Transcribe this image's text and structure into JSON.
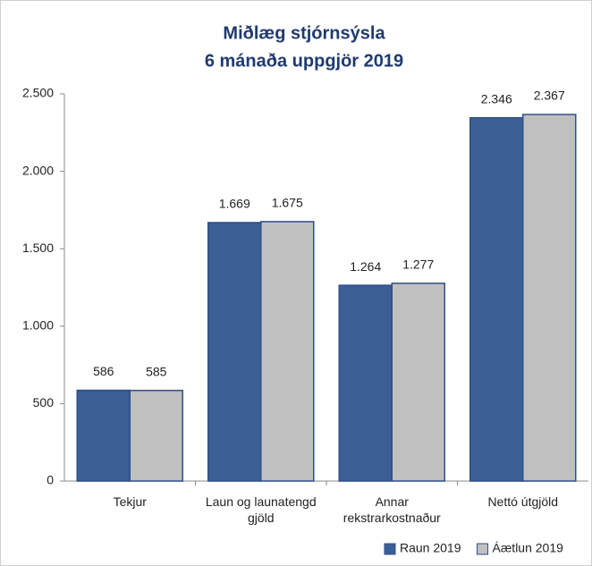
{
  "chart_data": {
    "type": "bar",
    "title": "Miðlæg stjórnsýsla",
    "subtitle": "6 mánaða uppgjör 2019",
    "categories": [
      "Tekjur",
      "Laun og launatengd gjöld",
      "Annar rekstrarkostnaður",
      "Nettó útgjöld"
    ],
    "series": [
      {
        "name": "Raun 2019",
        "color": "#3a5f95",
        "values": [
          586,
          1669,
          1264,
          2346
        ],
        "value_labels": [
          "586",
          "1.669",
          "1.264",
          "2.346"
        ]
      },
      {
        "name": "Áætlun 2019",
        "color": "#c0c0c0",
        "values": [
          585,
          1675,
          1277,
          2367
        ],
        "value_labels": [
          "585",
          "1.675",
          "1.277",
          "2.367"
        ]
      }
    ],
    "ylim": [
      0,
      2500
    ],
    "yticks": [
      0,
      500,
      {
        "value": 1000,
        "label": "1.000"
      },
      {
        "value": 1500,
        "label": "1.500"
      },
      {
        "value": 2000,
        "label": "2.000"
      },
      {
        "value": 2500,
        "label": "2.500"
      }
    ],
    "grid": false,
    "legend": "bottom-right"
  }
}
